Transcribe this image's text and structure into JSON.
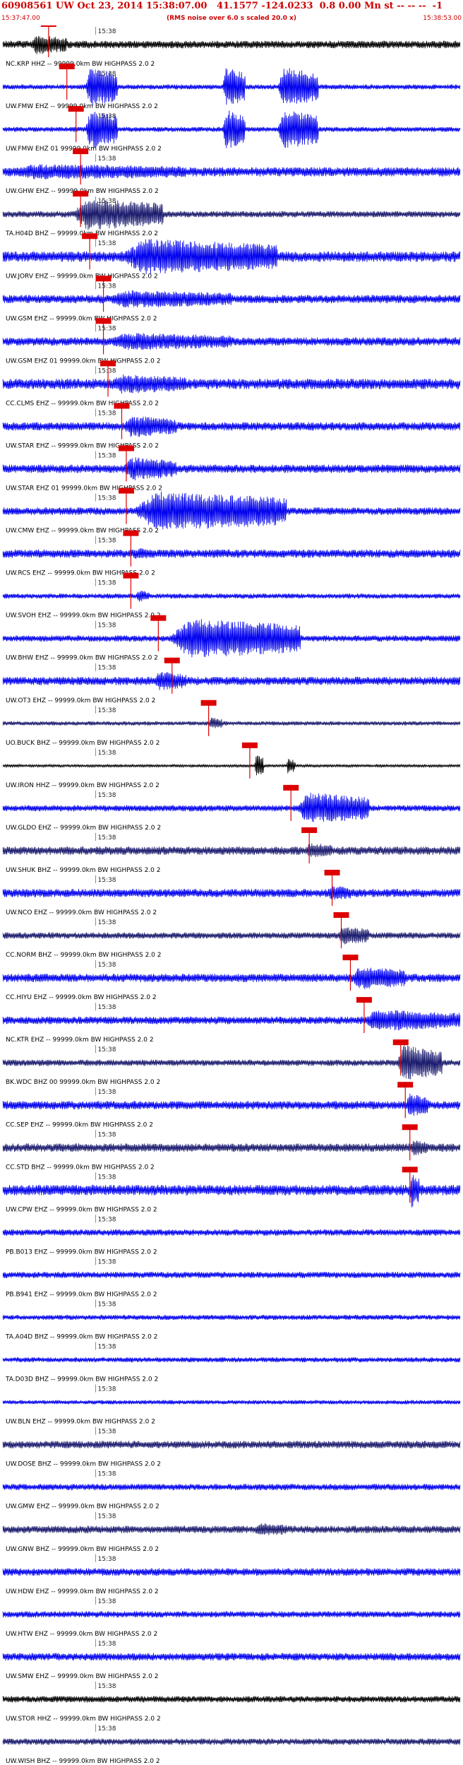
{
  "header": {
    "title": "60908561 UW Oct 23, 2014 15:38:07.00   41.1577 -124.0233  0.8 0.00 Mn st -- -- --  -1",
    "subtitle": "(RMS noise over 6.0 s scaled 20.0 x)",
    "start_time": "15:37:47.00",
    "end_time": "15:38:53.00"
  },
  "colors": {
    "blue": "#0000ee",
    "navy": "#1a1a6e",
    "black": "#000000",
    "pick": "#dd0000",
    "tick": "#888888"
  },
  "chart_data": {
    "type": "seismogram",
    "time_range": [
      "15:37:47.00",
      "15:38:53.00"
    ],
    "minute_tick_label": "15:38",
    "traces": [
      {
        "label": "NC.KRP HHZ -- 99999.0km BW  HIGHPASS  2.0  2",
        "pick": 0.1,
        "color": "black",
        "amp": 0.18,
        "bursts": [
          [
            0.06,
            0.14,
            0.5
          ]
        ]
      },
      {
        "label": "UW.FMW EHZ -- 99999.0km BW  HIGHPASS  2.0  2",
        "pick": 0.14,
        "color": "blue",
        "amp": 0.12,
        "bursts": [
          [
            0.18,
            0.25,
            1.0
          ],
          [
            0.48,
            0.53,
            1.0
          ],
          [
            0.6,
            0.69,
            1.0
          ]
        ]
      },
      {
        "label": "UW.FMW EHZ 01 99999.0km BW  HIGHPASS  2.0  2",
        "pick": 0.16,
        "color": "blue",
        "amp": 0.12,
        "bursts": [
          [
            0.18,
            0.25,
            1.0
          ],
          [
            0.48,
            0.53,
            1.0
          ],
          [
            0.6,
            0.69,
            1.0
          ]
        ]
      },
      {
        "label": "UW.GHW EHZ -- 99999.0km BW  HIGHPASS  2.0  2",
        "pick": 0.17,
        "color": "blue",
        "amp": 0.22,
        "bursts": [
          [
            0.0,
            0.4,
            0.4
          ]
        ]
      },
      {
        "label": "TA.H04D BHZ -- 99999.0km BW  HIGHPASS  2.0  2",
        "pick": 0.17,
        "color": "navy",
        "amp": 0.15,
        "bursts": [
          [
            0.15,
            0.35,
            0.8
          ]
        ]
      },
      {
        "label": "UW.JORV EHZ -- 99999.0km BW  HIGHPASS  2.0  2",
        "pick": 0.19,
        "color": "blue",
        "amp": 0.25,
        "bursts": [
          [
            0.25,
            0.6,
            0.9
          ]
        ]
      },
      {
        "label": "UW.GSM EHZ -- 99999.0km BW  HIGHPASS  2.0  2",
        "pick": 0.22,
        "color": "blue",
        "amp": 0.2,
        "bursts": [
          [
            0.22,
            0.5,
            0.45
          ]
        ]
      },
      {
        "label": "UW.GSM EHZ 01 99999.0km BW  HIGHPASS  2.0  2",
        "pick": 0.22,
        "color": "blue",
        "amp": 0.2,
        "bursts": [
          [
            0.22,
            0.5,
            0.45
          ]
        ]
      },
      {
        "label": "CC.CLMS EHZ -- 99999.0km BW  HIGHPASS  2.0  2",
        "pick": 0.23,
        "color": "blue",
        "amp": 0.25,
        "bursts": [
          [
            0.23,
            0.4,
            0.5
          ]
        ]
      },
      {
        "label": "UW.STAR EHZ -- 99999.0km BW  HIGHPASS  2.0  2",
        "pick": 0.26,
        "color": "blue",
        "amp": 0.2,
        "bursts": [
          [
            0.26,
            0.38,
            0.55
          ]
        ]
      },
      {
        "label": "UW.STAR EHZ 01 99999.0km BW  HIGHPASS  2.0  2",
        "pick": 0.27,
        "color": "blue",
        "amp": 0.2,
        "bursts": [
          [
            0.26,
            0.38,
            0.6
          ]
        ]
      },
      {
        "label": "UW.CMW EHZ -- 99999.0km BW  HIGHPASS  2.0  2",
        "pick": 0.27,
        "color": "blue",
        "amp": 0.18,
        "bursts": [
          [
            0.28,
            0.62,
            1.0
          ]
        ]
      },
      {
        "label": "UW.RCS EHZ -- 99999.0km BW  HIGHPASS  2.0  2",
        "pick": 0.28,
        "color": "blue",
        "amp": 0.2,
        "bursts": [
          [
            0.28,
            0.33,
            0.3
          ]
        ]
      },
      {
        "label": "UW.SVOH EHZ -- 99999.0km BW  HIGHPASS  2.0  2",
        "pick": 0.28,
        "color": "blue",
        "amp": 0.12,
        "bursts": [
          [
            0.29,
            0.32,
            0.3
          ]
        ]
      },
      {
        "label": "UW.BHW EHZ -- 99999.0km BW  HIGHPASS  2.0  2",
        "pick": 0.34,
        "color": "blue",
        "amp": 0.15,
        "bursts": [
          [
            0.36,
            0.65,
            1.0
          ]
        ]
      },
      {
        "label": "UW.OT3 EHZ -- 99999.0km BW  HIGHPASS  2.0  2",
        "pick": 0.37,
        "color": "blue",
        "amp": 0.2,
        "bursts": [
          [
            0.33,
            0.4,
            0.5
          ]
        ]
      },
      {
        "label": "UO.BUCK BHZ -- 99999.0km BW  HIGHPASS  2.0  2",
        "pick": 0.45,
        "color": "navy",
        "amp": 0.1,
        "bursts": [
          [
            0.45,
            0.48,
            0.3
          ]
        ]
      },
      {
        "label": "UW.IRON HHZ -- 99999.0km BW  HIGHPASS  2.0  2",
        "pick": 0.54,
        "color": "black",
        "amp": 0.06,
        "bursts": [
          [
            0.55,
            0.57,
            0.6
          ],
          [
            0.62,
            0.64,
            0.4
          ]
        ]
      },
      {
        "label": "UW.GLDO EHZ -- 99999.0km BW  HIGHPASS  2.0  2",
        "pick": 0.63,
        "color": "blue",
        "amp": 0.15,
        "bursts": [
          [
            0.64,
            0.8,
            0.8
          ]
        ]
      },
      {
        "label": "UW.SHUK BHZ -- 99999.0km BW  HIGHPASS  2.0  2",
        "pick": 0.67,
        "color": "navy",
        "amp": 0.2,
        "bursts": [
          [
            0.66,
            0.72,
            0.4
          ]
        ]
      },
      {
        "label": "UW.NCO EHZ -- 99999.0km BW  HIGHPASS  2.0  2",
        "pick": 0.72,
        "color": "blue",
        "amp": 0.2,
        "bursts": [
          [
            0.71,
            0.76,
            0.4
          ]
        ]
      },
      {
        "label": "CC.NORM BHZ -- 99999.0km BW  HIGHPASS  2.0  2",
        "pick": 0.74,
        "color": "navy",
        "amp": 0.15,
        "bursts": [
          [
            0.73,
            0.8,
            0.5
          ]
        ]
      },
      {
        "label": "CC.HIYU EHZ -- 99999.0km BW  HIGHPASS  2.0  2",
        "pick": 0.76,
        "color": "blue",
        "amp": 0.2,
        "bursts": [
          [
            0.76,
            0.88,
            0.6
          ]
        ]
      },
      {
        "label": "NC.KTR EHZ -- 99999.0km BW  HIGHPASS  2.0  2",
        "pick": 0.79,
        "color": "blue",
        "amp": 0.18,
        "bursts": [
          [
            0.78,
            1.0,
            0.55
          ]
        ]
      },
      {
        "label": "BK.WDC BHZ 00 99999.0km BW  HIGHPASS  2.0  2",
        "pick": 0.87,
        "color": "navy",
        "amp": 0.15,
        "bursts": [
          [
            0.86,
            0.96,
            0.9
          ]
        ]
      },
      {
        "label": "CC.SEP EHZ -- 99999.0km BW  HIGHPASS  2.0  2",
        "pick": 0.88,
        "color": "blue",
        "amp": 0.2,
        "bursts": [
          [
            0.88,
            0.93,
            0.6
          ]
        ]
      },
      {
        "label": "CC.STD BHZ -- 99999.0km BW  HIGHPASS  2.0  2",
        "pick": 0.89,
        "color": "navy",
        "amp": 0.2,
        "bursts": [
          [
            0.89,
            0.93,
            0.4
          ]
        ]
      },
      {
        "label": "UW.CPW EHZ -- 99999.0km BW  HIGHPASS  2.0  2",
        "pick": 0.89,
        "color": "blue",
        "amp": 0.25,
        "bursts": [
          [
            0.89,
            0.91,
            0.9
          ]
        ]
      },
      {
        "label": "PB.B013 EHZ -- 99999.0km BW  HIGHPASS  2.0  2",
        "pick": null,
        "color": "blue",
        "amp": 0.15,
        "bursts": []
      },
      {
        "label": "PB.B941 EHZ -- 99999.0km BW  HIGHPASS  2.0  2",
        "pick": null,
        "color": "blue",
        "amp": 0.15,
        "bursts": []
      },
      {
        "label": "TA.A04D BHZ -- 99999.0km BW  HIGHPASS  2.0  2",
        "pick": null,
        "color": "blue",
        "amp": 0.12,
        "bursts": []
      },
      {
        "label": "TA.D03D BHZ -- 99999.0km BW  HIGHPASS  2.0  2",
        "pick": null,
        "color": "blue",
        "amp": 0.12,
        "bursts": []
      },
      {
        "label": "UW.BLN EHZ -- 99999.0km BW  HIGHPASS  2.0  2",
        "pick": null,
        "color": "blue",
        "amp": 0.1,
        "bursts": []
      },
      {
        "label": "UW.DOSE BHZ -- 99999.0km BW  HIGHPASS  2.0  2",
        "pick": null,
        "color": "navy",
        "amp": 0.18,
        "bursts": []
      },
      {
        "label": "UW.GMW EHZ -- 99999.0km BW  HIGHPASS  2.0  2",
        "pick": null,
        "color": "blue",
        "amp": 0.15,
        "bursts": []
      },
      {
        "label": "UW.GNW BHZ -- 99999.0km BW  HIGHPASS  2.0  2",
        "pick": null,
        "color": "navy",
        "amp": 0.18,
        "bursts": [
          [
            0.55,
            0.62,
            0.35
          ]
        ]
      },
      {
        "label": "UW.HDW EHZ -- 99999.0km BW  HIGHPASS  2.0  2",
        "pick": null,
        "color": "blue",
        "amp": 0.18,
        "bursts": []
      },
      {
        "label": "UW.HTW EHZ -- 99999.0km BW  HIGHPASS  2.0  2",
        "pick": null,
        "color": "blue",
        "amp": 0.15,
        "bursts": []
      },
      {
        "label": "UW.SMW EHZ -- 99999.0km BW  HIGHPASS  2.0  2",
        "pick": null,
        "color": "blue",
        "amp": 0.18,
        "bursts": []
      },
      {
        "label": "UW.STOR HHZ -- 99999.0km BW  HIGHPASS  2.0  2",
        "pick": null,
        "color": "black",
        "amp": 0.15,
        "bursts": []
      },
      {
        "label": "UW.WISH BHZ -- 99999.0km BW  HIGHPASS  2.0  2",
        "pick": null,
        "color": "navy",
        "amp": 0.15,
        "bursts": []
      }
    ]
  }
}
